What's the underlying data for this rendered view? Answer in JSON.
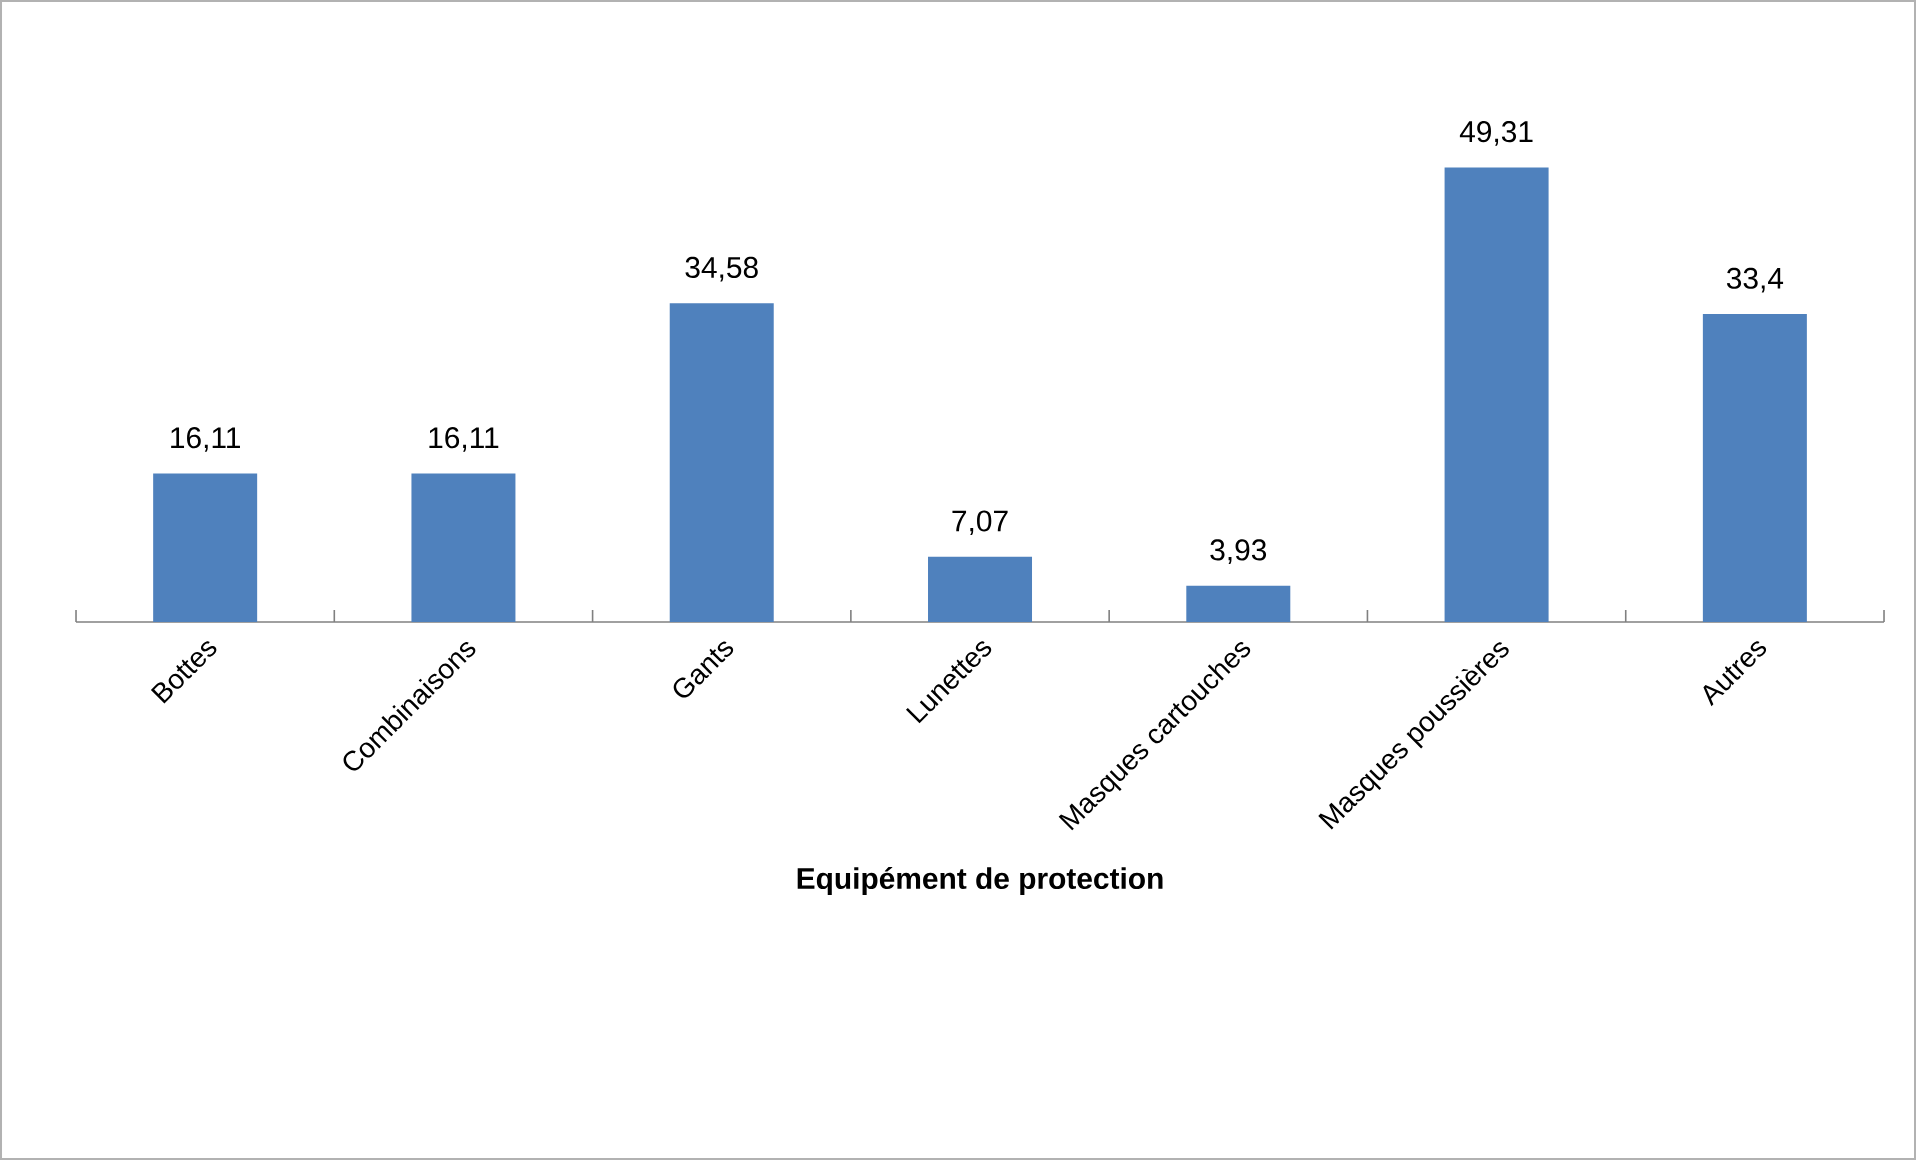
{
  "chart_data": {
    "type": "bar",
    "xlabel": "**Equipément de protection**",
    "categories": [
      "Bottes",
      "Combinaisons",
      "Gants",
      "Lunettes",
      "Masques cartouches",
      "Masques poussières",
      "Autres"
    ],
    "values": [
      16.11,
      16.11,
      34.58,
      7.07,
      3.93,
      49.31,
      33.4
    ],
    "value_labels": [
      "16,11",
      "16,11",
      "34,58",
      "7,07",
      "3,93",
      "49,31",
      "33,4"
    ],
    "color": "#4f81bd"
  }
}
